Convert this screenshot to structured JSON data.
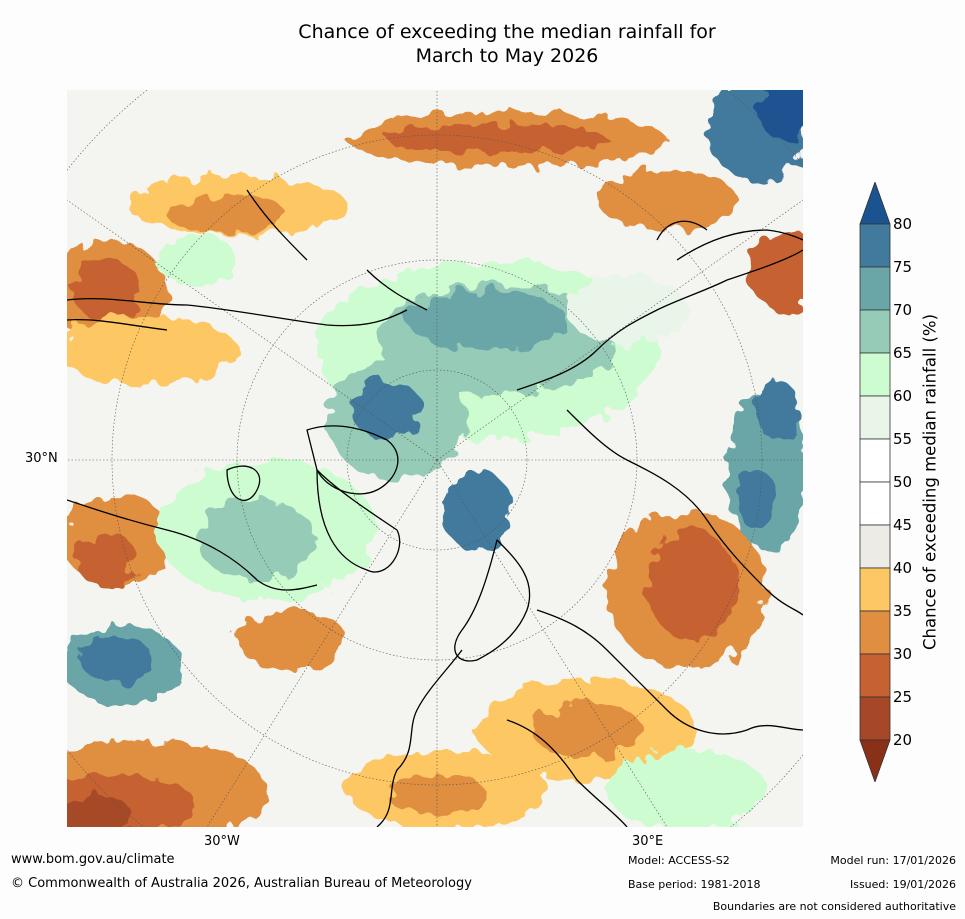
{
  "title_line1": "Chance of exceeding the median rainfall for",
  "title_line2": "March to May 2026",
  "lat_label": "30°N",
  "lon_labels": [
    "30°W",
    "30°E"
  ],
  "colorbar": {
    "title": "Chance of exceeding median rainfall (%)",
    "ticks": [
      "80",
      "75",
      "70",
      "65",
      "60",
      "55",
      "50",
      "45",
      "40",
      "35",
      "30",
      "25",
      "20"
    ],
    "colors": {
      "above_80": "#1a5390",
      "75_80": "#427a9d",
      "70_75": "#6aa6a8",
      "65_70": "#96cbb7",
      "60_65": "#ccfccf",
      "55_60": "#eaf5ea",
      "50_55": "#ffffff",
      "45_50": "#ffffff",
      "40_45": "#edebe6",
      "35_40": "#fdc763",
      "30_35": "#e08e41",
      "25_30": "#c66232",
      "20_25": "#a64827",
      "below_20": "#8a3019"
    }
  },
  "footer": {
    "website": "www.bom.gov.au/climate",
    "copyright": "© Commonwealth of Australia 2026, Australian Bureau of Meteorology",
    "model": "Model: ACCESS-S2",
    "base_period": "Base period: 1981-2018",
    "model_run": "Model run: 17/01/2026",
    "issued": "Issued: 19/01/2026",
    "disclaimer": "Boundaries are not considered authoritative"
  }
}
